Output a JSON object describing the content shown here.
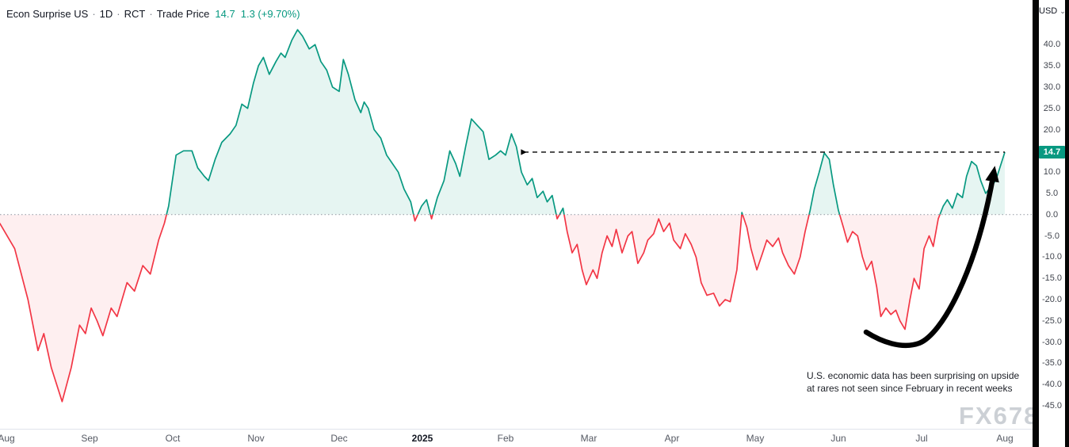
{
  "legend": {
    "symbol": "Econ Surprise US",
    "sep": "·",
    "interval": "1D",
    "exchange": "RCT",
    "series": "Trade Price",
    "last": "14.7",
    "change": "1.3 (+9.70%)"
  },
  "price_axis": {
    "currency_label": "USD",
    "price_label": "14.7"
  },
  "icons": {
    "settings_gear": "⚙",
    "chevron_down": "⌄"
  },
  "annotations": {
    "dashed_level": 14.7,
    "note_lines": [
      "U.S. economic data has been surprising on upside",
      "at rares not seen since February in recent weeks"
    ]
  },
  "watermark": "FX678",
  "chart_data": {
    "type": "area",
    "title": "Econ Surprise US",
    "interval": "1D",
    "exchange": "RCT",
    "series_name": "Trade Price",
    "last_value": 14.7,
    "change": 1.3,
    "change_pct": "+9.70%",
    "baseline": 0,
    "grid": false,
    "x_unit": "months since Aug 2024 tick",
    "y_range": [
      -50.4,
      50.5
    ],
    "y_ticks": [
      40,
      35,
      30,
      25,
      20,
      15,
      10,
      5,
      0,
      -5,
      -10,
      -15,
      -20,
      -25,
      -30,
      -35,
      -40,
      -45
    ],
    "x_ticks": [
      {
        "t": 0,
        "label": "Aug"
      },
      {
        "t": 1,
        "label": "Sep"
      },
      {
        "t": 2,
        "label": "Oct"
      },
      {
        "t": 3,
        "label": "Nov"
      },
      {
        "t": 4,
        "label": "Dec"
      },
      {
        "t": 5,
        "label": "2025",
        "bold": true
      },
      {
        "t": 6,
        "label": "Feb"
      },
      {
        "t": 7,
        "label": "Mar"
      },
      {
        "t": 8,
        "label": "Apr"
      },
      {
        "t": 9,
        "label": "May"
      },
      {
        "t": 10,
        "label": "Jun"
      },
      {
        "t": 11,
        "label": "Jul"
      },
      {
        "t": 12,
        "label": "Aug"
      }
    ],
    "colors": {
      "up": "#089981",
      "down": "#f23645",
      "up_fill": "rgba(8,153,129,0.10)",
      "down_fill": "rgba(242,54,69,0.08)",
      "baseline_dots": "#9096a0",
      "annotation": "#000000"
    },
    "points": [
      [
        -0.08,
        -2
      ],
      [
        0.1,
        -8
      ],
      [
        0.26,
        -20
      ],
      [
        0.38,
        -32
      ],
      [
        0.45,
        -28
      ],
      [
        0.54,
        -36
      ],
      [
        0.67,
        -44
      ],
      [
        0.78,
        -36
      ],
      [
        0.88,
        -26
      ],
      [
        0.95,
        -28
      ],
      [
        1.02,
        -22
      ],
      [
        1.09,
        -25
      ],
      [
        1.16,
        -28.5
      ],
      [
        1.26,
        -22
      ],
      [
        1.33,
        -24
      ],
      [
        1.45,
        -16
      ],
      [
        1.54,
        -18
      ],
      [
        1.64,
        -12
      ],
      [
        1.73,
        -14
      ],
      [
        1.83,
        -6
      ],
      [
        1.9,
        -2
      ],
      [
        1.95,
        2
      ],
      [
        2.04,
        14
      ],
      [
        2.13,
        15
      ],
      [
        2.23,
        15
      ],
      [
        2.3,
        11
      ],
      [
        2.38,
        9
      ],
      [
        2.43,
        8
      ],
      [
        2.51,
        13
      ],
      [
        2.59,
        17
      ],
      [
        2.69,
        19
      ],
      [
        2.76,
        21
      ],
      [
        2.83,
        26
      ],
      [
        2.9,
        25
      ],
      [
        2.97,
        31
      ],
      [
        3.03,
        35
      ],
      [
        3.09,
        37
      ],
      [
        3.16,
        33
      ],
      [
        3.24,
        36
      ],
      [
        3.3,
        38
      ],
      [
        3.35,
        37
      ],
      [
        3.43,
        41
      ],
      [
        3.5,
        43.5
      ],
      [
        3.56,
        42
      ],
      [
        3.64,
        39
      ],
      [
        3.71,
        40
      ],
      [
        3.78,
        36
      ],
      [
        3.85,
        34
      ],
      [
        3.92,
        30
      ],
      [
        4.0,
        29
      ],
      [
        4.05,
        36.5
      ],
      [
        4.11,
        33
      ],
      [
        4.19,
        27
      ],
      [
        4.26,
        24
      ],
      [
        4.3,
        26.5
      ],
      [
        4.35,
        25
      ],
      [
        4.42,
        20
      ],
      [
        4.5,
        18
      ],
      [
        4.57,
        14
      ],
      [
        4.64,
        12
      ],
      [
        4.71,
        10
      ],
      [
        4.78,
        6
      ],
      [
        4.86,
        3
      ],
      [
        4.91,
        -1.5
      ],
      [
        4.99,
        2
      ],
      [
        5.05,
        3.5
      ],
      [
        5.11,
        -1
      ],
      [
        5.18,
        4
      ],
      [
        5.26,
        8
      ],
      [
        5.33,
        15
      ],
      [
        5.4,
        12
      ],
      [
        5.45,
        9
      ],
      [
        5.52,
        16
      ],
      [
        5.59,
        22.5
      ],
      [
        5.66,
        21
      ],
      [
        5.73,
        19.5
      ],
      [
        5.8,
        13
      ],
      [
        5.88,
        14
      ],
      [
        5.94,
        15
      ],
      [
        6.0,
        14
      ],
      [
        6.07,
        19
      ],
      [
        6.13,
        16
      ],
      [
        6.19,
        10
      ],
      [
        6.26,
        7
      ],
      [
        6.32,
        8.5
      ],
      [
        6.38,
        4
      ],
      [
        6.45,
        5.5
      ],
      [
        6.5,
        3
      ],
      [
        6.56,
        4.5
      ],
      [
        6.62,
        -1
      ],
      [
        6.69,
        1.5
      ],
      [
        6.74,
        -4
      ],
      [
        6.8,
        -9
      ],
      [
        6.86,
        -7
      ],
      [
        6.92,
        -13
      ],
      [
        6.97,
        -16.5
      ],
      [
        7.05,
        -13
      ],
      [
        7.1,
        -15
      ],
      [
        7.16,
        -9
      ],
      [
        7.22,
        -5
      ],
      [
        7.28,
        -7.5
      ],
      [
        7.33,
        -3.5
      ],
      [
        7.4,
        -9
      ],
      [
        7.47,
        -5
      ],
      [
        7.52,
        -4
      ],
      [
        7.59,
        -11.5
      ],
      [
        7.66,
        -9
      ],
      [
        7.71,
        -6
      ],
      [
        7.78,
        -4.5
      ],
      [
        7.84,
        -1
      ],
      [
        7.9,
        -4
      ],
      [
        7.97,
        -2
      ],
      [
        8.02,
        -6
      ],
      [
        8.1,
        -8
      ],
      [
        8.16,
        -4.5
      ],
      [
        8.23,
        -7
      ],
      [
        8.29,
        -10
      ],
      [
        8.35,
        -16
      ],
      [
        8.42,
        -19
      ],
      [
        8.5,
        -18.5
      ],
      [
        8.57,
        -21.5
      ],
      [
        8.64,
        -20
      ],
      [
        8.7,
        -20.5
      ],
      [
        8.78,
        -13
      ],
      [
        8.84,
        0.5
      ],
      [
        8.9,
        -3
      ],
      [
        8.95,
        -8
      ],
      [
        9.02,
        -13
      ],
      [
        9.09,
        -9
      ],
      [
        9.14,
        -6
      ],
      [
        9.21,
        -7.5
      ],
      [
        9.28,
        -5.5
      ],
      [
        9.33,
        -9
      ],
      [
        9.4,
        -12
      ],
      [
        9.47,
        -14
      ],
      [
        9.54,
        -10
      ],
      [
        9.6,
        -4
      ],
      [
        9.66,
        1
      ],
      [
        9.71,
        6
      ],
      [
        9.77,
        10
      ],
      [
        9.83,
        14.5
      ],
      [
        9.89,
        13
      ],
      [
        9.94,
        7
      ],
      [
        10.0,
        1
      ],
      [
        10.06,
        -3
      ],
      [
        10.11,
        -6.5
      ],
      [
        10.17,
        -4
      ],
      [
        10.23,
        -5
      ],
      [
        10.29,
        -10
      ],
      [
        10.34,
        -13
      ],
      [
        10.4,
        -11
      ],
      [
        10.46,
        -17
      ],
      [
        10.51,
        -24
      ],
      [
        10.57,
        -22
      ],
      [
        10.63,
        -23.5
      ],
      [
        10.69,
        -22.5
      ],
      [
        10.74,
        -25
      ],
      [
        10.8,
        -27
      ],
      [
        10.86,
        -20
      ],
      [
        10.91,
        -15
      ],
      [
        10.97,
        -17.5
      ],
      [
        11.03,
        -8
      ],
      [
        11.09,
        -5
      ],
      [
        11.14,
        -7.5
      ],
      [
        11.2,
        -1
      ],
      [
        11.26,
        2
      ],
      [
        11.31,
        3.5
      ],
      [
        11.37,
        1.5
      ],
      [
        11.43,
        5
      ],
      [
        11.49,
        4
      ],
      [
        11.54,
        9
      ],
      [
        11.6,
        12.5
      ],
      [
        11.66,
        11.5
      ],
      [
        11.71,
        8
      ],
      [
        11.77,
        5
      ],
      [
        11.83,
        6.5
      ],
      [
        11.89,
        8
      ],
      [
        11.94,
        11
      ],
      [
        12.0,
        14.7
      ]
    ]
  }
}
